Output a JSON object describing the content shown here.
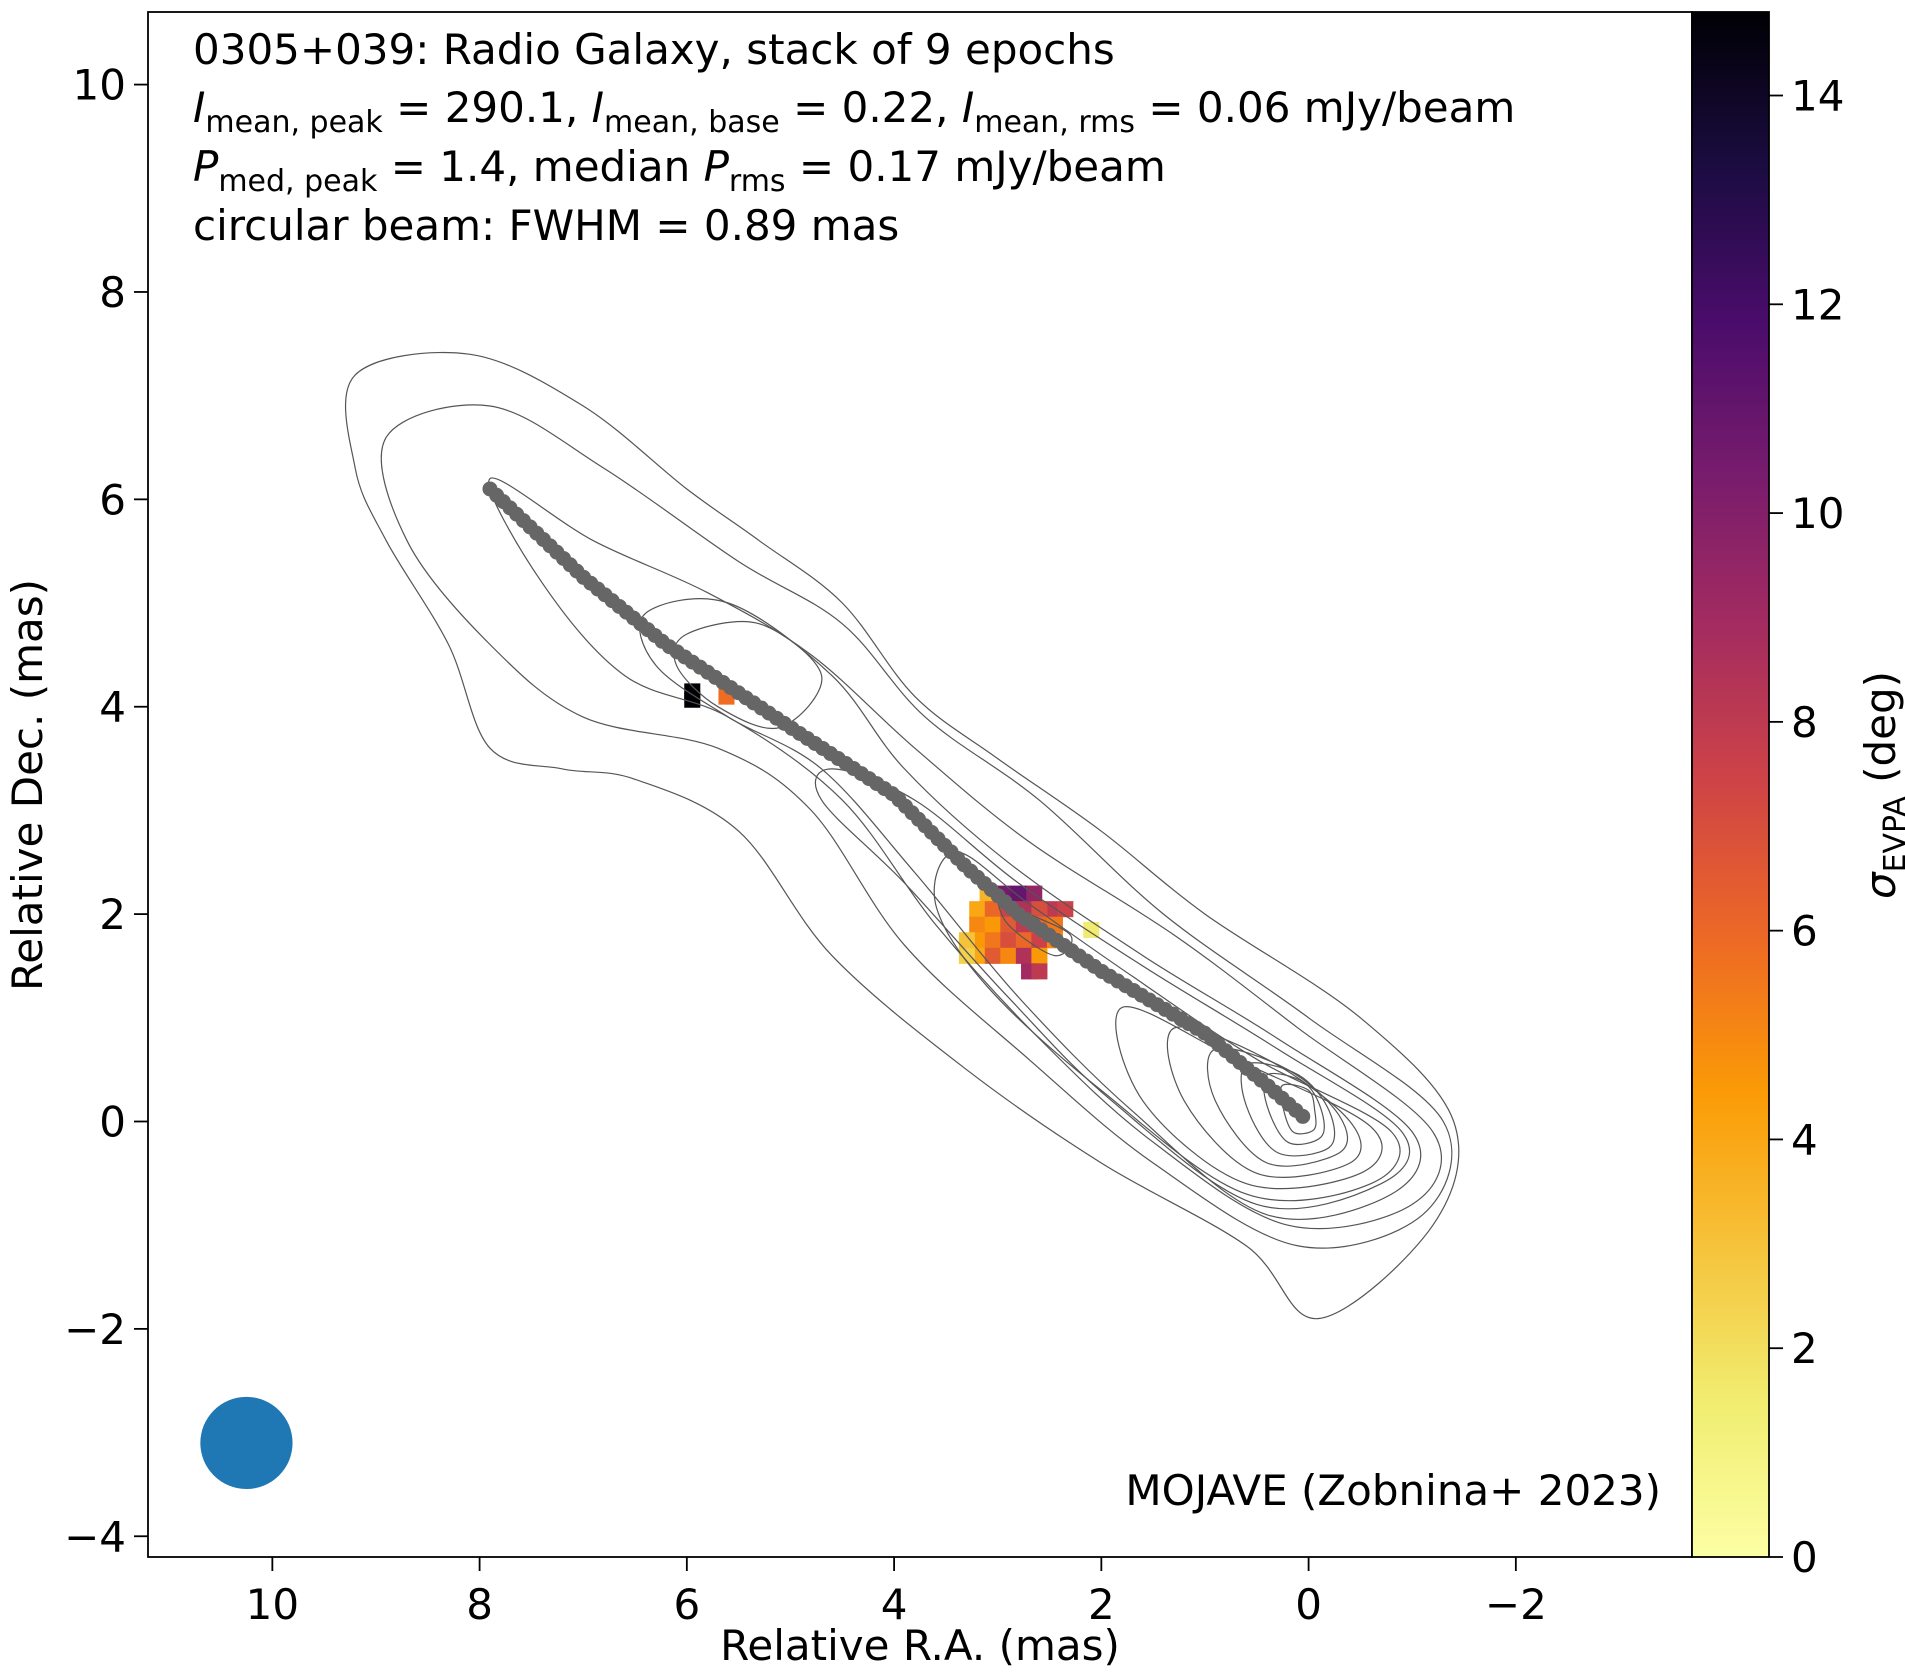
{
  "chart_data": {
    "type": "scatter",
    "annotations": {
      "line1": "0305+039: Radio Galaxy, stack of 9 epochs",
      "line2": {
        "s1": "I",
        "sub1": "mean, peak",
        "t1": " = 290.1, ",
        "s2": "I",
        "sub2": "mean, base",
        "t2": " = 0.22, ",
        "s3": "I",
        "sub3": "mean, rms",
        "t3": " = 0.06 mJy/beam"
      },
      "line3": {
        "s1": "P",
        "sub1": "med, peak",
        "t1": " = 1.4, median ",
        "s2": "P",
        "sub2": "rms",
        "t2": " = 0.17 mJy/beam"
      },
      "line4": "circular beam: FWHM = 0.89 mas",
      "credit": "MOJAVE (Zobnina+ 2023)"
    },
    "xlabel": "Relative R.A. (mas)",
    "ylabel": "Relative Dec. (mas)",
    "colorbar_label": {
      "sym": "σ",
      "sub": "EVPA",
      "rest": " (deg)"
    },
    "xlim": [
      11.2,
      -3.7
    ],
    "ylim": [
      -4.2,
      10.7
    ],
    "xticks": [
      10,
      8,
      6,
      4,
      2,
      0,
      -2
    ],
    "xtick_labels": [
      "10",
      "8",
      "6",
      "4",
      "2",
      "0",
      "−2"
    ],
    "yticks": [
      -4,
      -2,
      0,
      2,
      4,
      6,
      8,
      10
    ],
    "ytick_labels": [
      "−4",
      "−2",
      "0",
      "2",
      "4",
      "6",
      "8",
      "10"
    ],
    "colorbar_range": [
      0,
      14.8
    ],
    "colorbar_ticks": [
      0,
      2,
      4,
      6,
      8,
      10,
      12,
      14
    ],
    "colorbar_tick_labels": [
      "0",
      "2",
      "4",
      "6",
      "8",
      "10",
      "12",
      "14"
    ],
    "colormap": "inferno_r",
    "grid": false,
    "beam": {
      "ra": 10.25,
      "dec": -3.1,
      "fwhm_mas": 0.89,
      "color": "#1f77b4"
    },
    "ridgeline": {
      "color": "#666666",
      "points": [
        [
          7.9,
          6.1
        ],
        [
          7.0,
          5.25
        ],
        [
          6.2,
          4.6
        ],
        [
          5.0,
          3.8
        ],
        [
          4.0,
          3.15
        ],
        [
          3.3,
          2.45
        ],
        [
          2.8,
          2.0
        ],
        [
          2.0,
          1.45
        ],
        [
          1.0,
          0.85
        ],
        [
          0.4,
          0.35
        ],
        [
          0.0,
          0.0
        ]
      ]
    },
    "contours": {
      "color": "#555555",
      "levels": [
        [
          [
            9.2,
            7.2
          ],
          [
            8.1,
            7.4
          ],
          [
            7.0,
            6.9
          ],
          [
            6.0,
            6.1
          ],
          [
            5.3,
            5.6
          ],
          [
            4.5,
            5.0
          ],
          [
            3.8,
            4.1
          ],
          [
            3.0,
            3.5
          ],
          [
            2.0,
            2.8
          ],
          [
            1.0,
            2.0
          ],
          [
            -0.5,
            1.0
          ],
          [
            -1.4,
            0.0
          ],
          [
            -1.2,
            -1.0
          ],
          [
            -0.1,
            -1.9
          ],
          [
            0.6,
            -1.2
          ],
          [
            2.0,
            -0.4
          ],
          [
            3.3,
            0.5
          ],
          [
            4.6,
            1.6
          ],
          [
            5.5,
            2.8
          ],
          [
            6.5,
            3.3
          ],
          [
            7.2,
            3.4
          ],
          [
            7.9,
            3.6
          ],
          [
            8.3,
            4.6
          ],
          [
            8.9,
            5.6
          ],
          [
            9.2,
            6.3
          ]
        ],
        [
          [
            8.9,
            6.6
          ],
          [
            7.9,
            6.9
          ],
          [
            6.8,
            6.3
          ],
          [
            5.5,
            5.4
          ],
          [
            4.5,
            4.8
          ],
          [
            3.7,
            3.9
          ],
          [
            2.6,
            3.1
          ],
          [
            1.4,
            2.0
          ],
          [
            0.0,
            1.0
          ],
          [
            -1.3,
            0.0
          ],
          [
            -1.1,
            -0.9
          ],
          [
            0.1,
            -1.2
          ],
          [
            1.5,
            -0.4
          ],
          [
            2.7,
            0.6
          ],
          [
            3.9,
            1.7
          ],
          [
            4.8,
            3.0
          ],
          [
            5.7,
            3.6
          ],
          [
            7.0,
            3.9
          ],
          [
            7.9,
            4.6
          ],
          [
            8.7,
            5.6
          ]
        ],
        [
          [
            7.9,
            6.2
          ],
          [
            6.9,
            5.6
          ],
          [
            5.8,
            5.1
          ],
          [
            4.8,
            4.5
          ],
          [
            3.8,
            3.6
          ],
          [
            2.7,
            2.7
          ],
          [
            1.3,
            1.8
          ],
          [
            0.1,
            0.9
          ],
          [
            -1.2,
            -0.1
          ],
          [
            -1.0,
            -0.8
          ],
          [
            0.2,
            -1.0
          ],
          [
            1.5,
            -0.2
          ],
          [
            2.6,
            0.8
          ],
          [
            3.6,
            1.9
          ],
          [
            4.5,
            3.1
          ],
          [
            5.6,
            3.9
          ],
          [
            6.6,
            4.3
          ],
          [
            7.4,
            5.2
          ]
        ],
        [
          [
            6.4,
            4.9
          ],
          [
            5.6,
            5.0
          ],
          [
            4.6,
            4.3
          ],
          [
            3.9,
            3.4
          ],
          [
            2.9,
            2.5
          ],
          [
            1.6,
            1.6
          ],
          [
            0.3,
            0.8
          ],
          [
            -1.0,
            -0.1
          ],
          [
            -0.8,
            -0.7
          ],
          [
            0.4,
            -0.9
          ],
          [
            1.7,
            0.1
          ],
          [
            2.8,
            1.2
          ],
          [
            3.8,
            2.4
          ],
          [
            4.7,
            3.4
          ],
          [
            5.6,
            3.9
          ],
          [
            6.3,
            4.4
          ]
        ],
        [
          [
            6.0,
            4.7
          ],
          [
            5.3,
            4.8
          ],
          [
            4.7,
            4.3
          ],
          [
            5.1,
            3.8
          ],
          [
            5.7,
            4.0
          ],
          [
            6.1,
            4.4
          ]
        ],
        [
          [
            4.6,
            3.4
          ],
          [
            3.8,
            3.1
          ],
          [
            2.8,
            2.3
          ],
          [
            1.6,
            1.5
          ],
          [
            0.3,
            0.7
          ],
          [
            -0.9,
            -0.1
          ],
          [
            -0.7,
            -0.6
          ],
          [
            0.5,
            -0.8
          ],
          [
            1.9,
            0.2
          ],
          [
            2.9,
            1.2
          ],
          [
            3.9,
            2.3
          ],
          [
            4.7,
            3.1
          ]
        ],
        [
          [
            3.4,
            2.6
          ],
          [
            2.7,
            2.1
          ],
          [
            1.7,
            1.4
          ],
          [
            0.5,
            0.6
          ],
          [
            -0.8,
            -0.1
          ],
          [
            -0.6,
            -0.6
          ],
          [
            0.6,
            -0.7
          ],
          [
            2.0,
            0.3
          ],
          [
            3.1,
            1.3
          ],
          [
            3.6,
            2.1
          ]
        ],
        [
          [
            1.8,
            1.1
          ],
          [
            0.7,
            0.6
          ],
          [
            -0.6,
            -0.05
          ],
          [
            -0.5,
            -0.5
          ],
          [
            0.6,
            -0.6
          ],
          [
            1.6,
            0.2
          ]
        ],
        [
          [
            1.3,
            0.9
          ],
          [
            0.4,
            0.6
          ],
          [
            -0.4,
            0.0
          ],
          [
            -0.4,
            -0.4
          ],
          [
            0.5,
            -0.5
          ],
          [
            1.2,
            0.2
          ]
        ],
        [
          [
            0.9,
            0.7
          ],
          [
            0.2,
            0.5
          ],
          [
            -0.3,
            0.05
          ],
          [
            -0.3,
            -0.3
          ],
          [
            0.4,
            -0.4
          ],
          [
            0.9,
            0.2
          ]
        ],
        [
          [
            0.6,
            0.55
          ],
          [
            0.1,
            0.45
          ],
          [
            -0.2,
            0.1
          ],
          [
            -0.2,
            -0.25
          ],
          [
            0.3,
            -0.3
          ],
          [
            0.6,
            0.15
          ]
        ],
        [
          [
            0.4,
            0.45
          ],
          [
            0.05,
            0.38
          ],
          [
            -0.12,
            0.12
          ],
          [
            -0.12,
            -0.15
          ],
          [
            0.2,
            -0.2
          ],
          [
            0.4,
            0.15
          ]
        ],
        [
          [
            0.25,
            0.35
          ],
          [
            0.0,
            0.3
          ],
          [
            -0.06,
            0.1
          ],
          [
            -0.05,
            -0.08
          ],
          [
            0.15,
            -0.1
          ],
          [
            0.25,
            0.15
          ]
        ],
        [
          [
            3.0,
            2.2
          ],
          [
            2.8,
            2.05
          ],
          [
            2.3,
            1.8
          ],
          [
            2.45,
            1.6
          ],
          [
            2.9,
            1.9
          ]
        ]
      ]
    },
    "evpa_pixels": [
      [
        5.95,
        4.15,
        14.8
      ],
      [
        5.95,
        4.07,
        14.8
      ],
      [
        5.62,
        4.1,
        5.8
      ],
      [
        3.1,
        2.2,
        3.5
      ],
      [
        2.95,
        2.2,
        10.5
      ],
      [
        2.8,
        2.2,
        11.0
      ],
      [
        2.65,
        2.2,
        9.5
      ],
      [
        2.5,
        2.05,
        8.0
      ],
      [
        3.2,
        2.05,
        4.0
      ],
      [
        3.05,
        2.05,
        6.0
      ],
      [
        2.9,
        2.05,
        7.5
      ],
      [
        2.75,
        2.05,
        8.5
      ],
      [
        2.6,
        2.05,
        7.0
      ],
      [
        2.35,
        2.05,
        7.5
      ],
      [
        3.2,
        1.9,
        5.0
      ],
      [
        3.05,
        1.9,
        4.5
      ],
      [
        2.9,
        1.9,
        6.5
      ],
      [
        2.75,
        1.9,
        8.0
      ],
      [
        2.6,
        1.9,
        6.0
      ],
      [
        2.45,
        1.9,
        5.5
      ],
      [
        3.2,
        1.75,
        4.5
      ],
      [
        3.05,
        1.75,
        5.5
      ],
      [
        2.9,
        1.75,
        7.0
      ],
      [
        2.75,
        1.75,
        6.0
      ],
      [
        2.6,
        1.75,
        7.5
      ],
      [
        2.45,
        1.75,
        5.0
      ],
      [
        2.1,
        1.85,
        1.5
      ],
      [
        3.2,
        1.6,
        4.0
      ],
      [
        3.05,
        1.6,
        6.5
      ],
      [
        2.9,
        1.6,
        5.0
      ],
      [
        2.75,
        1.6,
        8.5
      ],
      [
        2.6,
        1.6,
        4.5
      ],
      [
        3.3,
        1.6,
        2.5
      ],
      [
        3.3,
        1.75,
        3.0
      ],
      [
        2.7,
        1.45,
        9.0
      ],
      [
        2.6,
        1.45,
        8.0
      ]
    ]
  },
  "colors": {
    "ridge": "#666666",
    "contour": "#555555",
    "beam": "#1f77b4"
  }
}
